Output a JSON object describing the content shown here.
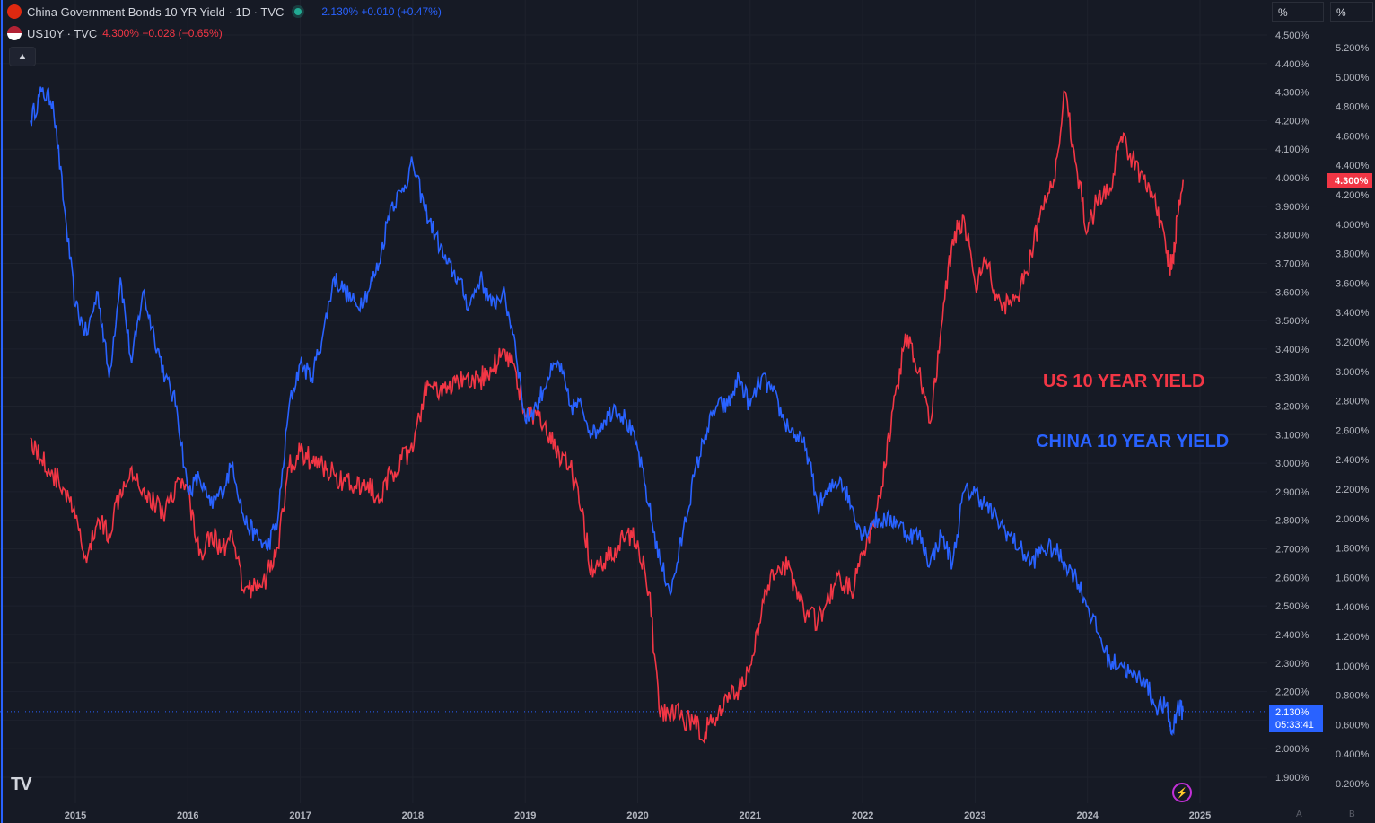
{
  "legend": {
    "cn_title": "China Government Bonds 10 YR Yield · 1D · TVC",
    "cn_value": "2.130%  +0.010 (+0.47%)",
    "us_title": "US10Y · TVC",
    "us_value": "4.300%  −0.028 (−0.65%)",
    "collapse_icon": "chevron-up-icon"
  },
  "scales": {
    "left_unit": "%",
    "right_unit": "%"
  },
  "badges": {
    "cn_price": "2.130%",
    "cn_countdown": "05:33:41",
    "us_price": "4.300%"
  },
  "annotations": {
    "us": "US 10 YEAR YIELD",
    "cn": "CHINA 10 YEAR YIELD"
  },
  "colors": {
    "us": "#f23645",
    "cn": "#2962ff",
    "background": "#161a25",
    "grid": "#1e222d"
  },
  "bottom": {
    "logo": "TV",
    "scale_a": "A",
    "scale_b": "B"
  },
  "chart_data": {
    "type": "line",
    "x_ticks": [
      "2015",
      "2016",
      "2017",
      "2018",
      "2019",
      "2020",
      "2021",
      "2022",
      "2023",
      "2024",
      "2025"
    ],
    "y_axis_left": {
      "series": "China Government Bonds 10 YR Yield",
      "ticks": [
        "4.500%",
        "4.400%",
        "4.300%",
        "4.200%",
        "4.100%",
        "4.000%",
        "3.900%",
        "3.800%",
        "3.700%",
        "3.600%",
        "3.500%",
        "3.400%",
        "3.300%",
        "3.200%",
        "3.100%",
        "3.000%",
        "2.900%",
        "2.800%",
        "2.700%",
        "2.600%",
        "2.500%",
        "2.400%",
        "2.300%",
        "2.200%",
        "2.100%",
        "2.000%",
        "1.900%"
      ],
      "range": [
        1.88,
        4.52
      ]
    },
    "y_axis_right": {
      "series": "US10Y",
      "ticks": [
        "5.200%",
        "5.000%",
        "4.800%",
        "4.600%",
        "4.400%",
        "4.200%",
        "4.000%",
        "3.800%",
        "3.600%",
        "3.400%",
        "3.200%",
        "3.000%",
        "2.800%",
        "2.600%",
        "2.400%",
        "2.200%",
        "2.000%",
        "1.800%",
        "1.600%",
        "1.400%",
        "1.200%",
        "1.000%",
        "0.800%",
        "0.600%",
        "0.400%",
        "0.200%"
      ],
      "range": [
        0.15,
        5.3
      ]
    },
    "series": [
      {
        "name": "China Government Bonds 10 YR Yield",
        "axis": "left",
        "points": [
          [
            2014.6,
            4.2
          ],
          [
            2014.7,
            4.3
          ],
          [
            2014.8,
            4.27
          ],
          [
            2014.9,
            3.9
          ],
          [
            2015.0,
            3.55
          ],
          [
            2015.1,
            3.45
          ],
          [
            2015.2,
            3.6
          ],
          [
            2015.3,
            3.3
          ],
          [
            2015.4,
            3.65
          ],
          [
            2015.5,
            3.35
          ],
          [
            2015.6,
            3.6
          ],
          [
            2015.7,
            3.45
          ],
          [
            2015.8,
            3.3
          ],
          [
            2015.9,
            3.2
          ],
          [
            2016.0,
            2.9
          ],
          [
            2016.1,
            2.95
          ],
          [
            2016.2,
            2.85
          ],
          [
            2016.3,
            2.9
          ],
          [
            2016.4,
            3.0
          ],
          [
            2016.5,
            2.8
          ],
          [
            2016.6,
            2.75
          ],
          [
            2016.7,
            2.7
          ],
          [
            2016.8,
            2.8
          ],
          [
            2016.9,
            3.2
          ],
          [
            2017.0,
            3.35
          ],
          [
            2017.1,
            3.3
          ],
          [
            2017.2,
            3.45
          ],
          [
            2017.3,
            3.65
          ],
          [
            2017.4,
            3.6
          ],
          [
            2017.5,
            3.55
          ],
          [
            2017.6,
            3.6
          ],
          [
            2017.7,
            3.7
          ],
          [
            2017.8,
            3.9
          ],
          [
            2017.9,
            3.95
          ],
          [
            2018.0,
            4.05
          ],
          [
            2018.1,
            3.9
          ],
          [
            2018.2,
            3.8
          ],
          [
            2018.3,
            3.7
          ],
          [
            2018.4,
            3.65
          ],
          [
            2018.5,
            3.55
          ],
          [
            2018.6,
            3.65
          ],
          [
            2018.7,
            3.55
          ],
          [
            2018.8,
            3.6
          ],
          [
            2018.9,
            3.45
          ],
          [
            2019.0,
            3.15
          ],
          [
            2019.1,
            3.2
          ],
          [
            2019.2,
            3.3
          ],
          [
            2019.3,
            3.35
          ],
          [
            2019.4,
            3.2
          ],
          [
            2019.5,
            3.2
          ],
          [
            2019.6,
            3.1
          ],
          [
            2019.7,
            3.15
          ],
          [
            2019.8,
            3.2
          ],
          [
            2019.9,
            3.15
          ],
          [
            2020.0,
            3.05
          ],
          [
            2020.1,
            2.85
          ],
          [
            2020.2,
            2.65
          ],
          [
            2020.3,
            2.55
          ],
          [
            2020.4,
            2.75
          ],
          [
            2020.5,
            2.95
          ],
          [
            2020.6,
            3.1
          ],
          [
            2020.7,
            3.2
          ],
          [
            2020.8,
            3.2
          ],
          [
            2020.9,
            3.3
          ],
          [
            2021.0,
            3.2
          ],
          [
            2021.1,
            3.3
          ],
          [
            2021.2,
            3.25
          ],
          [
            2021.3,
            3.15
          ],
          [
            2021.4,
            3.1
          ],
          [
            2021.5,
            3.05
          ],
          [
            2021.6,
            2.85
          ],
          [
            2021.7,
            2.9
          ],
          [
            2021.8,
            2.95
          ],
          [
            2021.9,
            2.85
          ],
          [
            2022.0,
            2.75
          ],
          [
            2022.1,
            2.8
          ],
          [
            2022.2,
            2.8
          ],
          [
            2022.3,
            2.8
          ],
          [
            2022.4,
            2.75
          ],
          [
            2022.5,
            2.75
          ],
          [
            2022.6,
            2.65
          ],
          [
            2022.7,
            2.75
          ],
          [
            2022.8,
            2.65
          ],
          [
            2022.9,
            2.9
          ],
          [
            2023.0,
            2.9
          ],
          [
            2023.1,
            2.85
          ],
          [
            2023.2,
            2.8
          ],
          [
            2023.3,
            2.75
          ],
          [
            2023.4,
            2.7
          ],
          [
            2023.5,
            2.65
          ],
          [
            2023.6,
            2.7
          ],
          [
            2023.7,
            2.7
          ],
          [
            2023.8,
            2.65
          ],
          [
            2023.9,
            2.6
          ],
          [
            2024.0,
            2.5
          ],
          [
            2024.1,
            2.4
          ],
          [
            2024.2,
            2.3
          ],
          [
            2024.3,
            2.3
          ],
          [
            2024.4,
            2.25
          ],
          [
            2024.5,
            2.25
          ],
          [
            2024.6,
            2.15
          ],
          [
            2024.7,
            2.15
          ],
          [
            2024.75,
            2.05
          ],
          [
            2024.8,
            2.15
          ],
          [
            2024.85,
            2.13
          ]
        ]
      },
      {
        "name": "US10Y",
        "axis": "right",
        "points": [
          [
            2014.6,
            2.55
          ],
          [
            2014.7,
            2.4
          ],
          [
            2014.8,
            2.3
          ],
          [
            2014.9,
            2.2
          ],
          [
            2015.0,
            2.0
          ],
          [
            2015.1,
            1.7
          ],
          [
            2015.2,
            2.0
          ],
          [
            2015.3,
            1.9
          ],
          [
            2015.4,
            2.2
          ],
          [
            2015.5,
            2.35
          ],
          [
            2015.6,
            2.2
          ],
          [
            2015.7,
            2.1
          ],
          [
            2015.8,
            2.05
          ],
          [
            2015.9,
            2.25
          ],
          [
            2016.0,
            2.2
          ],
          [
            2016.1,
            1.75
          ],
          [
            2016.2,
            1.9
          ],
          [
            2016.3,
            1.8
          ],
          [
            2016.4,
            1.85
          ],
          [
            2016.5,
            1.5
          ],
          [
            2016.6,
            1.55
          ],
          [
            2016.7,
            1.6
          ],
          [
            2016.8,
            1.8
          ],
          [
            2016.9,
            2.35
          ],
          [
            2017.0,
            2.45
          ],
          [
            2017.1,
            2.4
          ],
          [
            2017.2,
            2.35
          ],
          [
            2017.3,
            2.3
          ],
          [
            2017.4,
            2.25
          ],
          [
            2017.5,
            2.2
          ],
          [
            2017.6,
            2.25
          ],
          [
            2017.7,
            2.1
          ],
          [
            2017.8,
            2.3
          ],
          [
            2017.9,
            2.4
          ],
          [
            2018.0,
            2.45
          ],
          [
            2018.1,
            2.85
          ],
          [
            2018.2,
            2.9
          ],
          [
            2018.3,
            2.85
          ],
          [
            2018.4,
            2.95
          ],
          [
            2018.5,
            2.9
          ],
          [
            2018.6,
            2.95
          ],
          [
            2018.7,
            3.0
          ],
          [
            2018.8,
            3.15
          ],
          [
            2018.9,
            3.05
          ],
          [
            2019.0,
            2.7
          ],
          [
            2019.1,
            2.7
          ],
          [
            2019.2,
            2.55
          ],
          [
            2019.3,
            2.45
          ],
          [
            2019.4,
            2.35
          ],
          [
            2019.5,
            2.05
          ],
          [
            2019.6,
            1.6
          ],
          [
            2019.7,
            1.7
          ],
          [
            2019.8,
            1.8
          ],
          [
            2019.9,
            1.9
          ],
          [
            2020.0,
            1.85
          ],
          [
            2020.1,
            1.5
          ],
          [
            2020.2,
            0.65
          ],
          [
            2020.3,
            0.7
          ],
          [
            2020.4,
            0.65
          ],
          [
            2020.5,
            0.6
          ],
          [
            2020.6,
            0.55
          ],
          [
            2020.7,
            0.65
          ],
          [
            2020.8,
            0.75
          ],
          [
            2020.9,
            0.85
          ],
          [
            2021.0,
            1.0
          ],
          [
            2021.1,
            1.35
          ],
          [
            2021.2,
            1.65
          ],
          [
            2021.3,
            1.7
          ],
          [
            2021.4,
            1.55
          ],
          [
            2021.5,
            1.35
          ],
          [
            2021.6,
            1.3
          ],
          [
            2021.7,
            1.45
          ],
          [
            2021.8,
            1.6
          ],
          [
            2021.9,
            1.5
          ],
          [
            2022.0,
            1.75
          ],
          [
            2022.1,
            1.95
          ],
          [
            2022.2,
            2.35
          ],
          [
            2022.3,
            2.9
          ],
          [
            2022.4,
            3.25
          ],
          [
            2022.5,
            3.0
          ],
          [
            2022.6,
            2.65
          ],
          [
            2022.7,
            3.3
          ],
          [
            2022.8,
            3.9
          ],
          [
            2022.9,
            4.05
          ],
          [
            2023.0,
            3.6
          ],
          [
            2023.1,
            3.75
          ],
          [
            2023.2,
            3.5
          ],
          [
            2023.3,
            3.45
          ],
          [
            2023.4,
            3.55
          ],
          [
            2023.5,
            3.8
          ],
          [
            2023.6,
            4.1
          ],
          [
            2023.7,
            4.3
          ],
          [
            2023.8,
            4.9
          ],
          [
            2023.9,
            4.4
          ],
          [
            2024.0,
            3.95
          ],
          [
            2024.1,
            4.2
          ],
          [
            2024.2,
            4.25
          ],
          [
            2024.3,
            4.6
          ],
          [
            2024.4,
            4.45
          ],
          [
            2024.5,
            4.3
          ],
          [
            2024.6,
            4.2
          ],
          [
            2024.7,
            3.8
          ],
          [
            2024.75,
            3.7
          ],
          [
            2024.8,
            4.05
          ],
          [
            2024.85,
            4.3
          ]
        ]
      }
    ],
    "grid": true
  }
}
